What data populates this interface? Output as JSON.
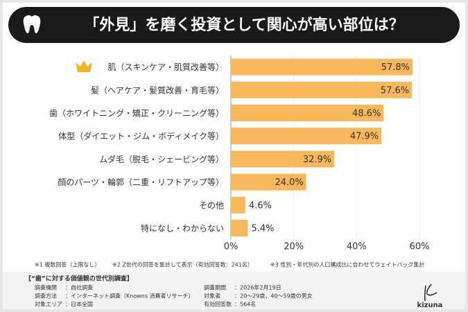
{
  "chart_data": {
    "type": "bar",
    "orientation": "horizontal",
    "title": "「外見」を磨く投資として関心が高い部位は？",
    "categories": [
      "肌（スキンケア・肌質改善等）",
      "髪（ヘアケア・髪質改善・育毛等）",
      "歯（ホワイトニング・矯正・クリーニング等）",
      "体型（ダイエット・ジム・ボディメイク等）",
      "ムダ毛（脱毛・シェービング等）",
      "顔のパーツ・輪郭（二重・リフトアップ等）",
      "その他",
      "特になし・わからない"
    ],
    "values": [
      57.8,
      57.6,
      48.6,
      47.9,
      32.9,
      24.0,
      4.6,
      5.4
    ],
    "value_labels": [
      "57.8%",
      "57.6%",
      "48.6%",
      "47.9%",
      "32.9%",
      "24.0%",
      "4.6%",
      "5.4%"
    ],
    "color": "#f9b85c",
    "xlim": [
      0,
      60
    ],
    "xticks": [
      {
        "value": 0,
        "label": "0%"
      },
      {
        "value": 20,
        "label": "20%"
      },
      {
        "value": 40,
        "label": "40%"
      },
      {
        "value": 60,
        "label": "60%"
      }
    ],
    "grid": true,
    "notes": [
      "※1 複数回答（上限なし）",
      "※2 Z世代の回答を集計して表示（有効回答数：241名）",
      "※3 性別・年代別の人口構成比に合わせてウェイトバック集計"
    ]
  },
  "survey": {
    "title": "【“歯”に対する価値観の世代別調査】",
    "items": [
      {
        "label": "調査機関",
        "value": "：自社調査"
      },
      {
        "label": "調査方法",
        "value": "：インターネット調査（Knowns 消費者リサーチ）"
      },
      {
        "label": "対象エリア",
        "value": "：日本全国"
      },
      {
        "label": "調査期間",
        "value": "：2026年2月19日"
      },
      {
        "label": "対象者",
        "value": "：20～29歳、40～59歳の男女"
      },
      {
        "label": "有効回答数",
        "value": "：564名"
      }
    ]
  },
  "logo": "kizuna"
}
